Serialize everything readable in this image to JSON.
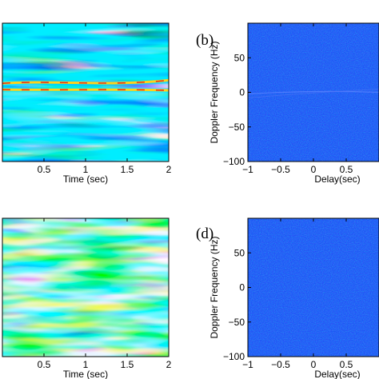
{
  "chart_data": [
    {
      "type": "heatmap",
      "panel_label": "",
      "xlabel": "Time (sec)",
      "ylabel": "",
      "xlim": [
        0,
        2
      ],
      "x_ticks": [
        0.5,
        1,
        1.5,
        2
      ],
      "x_tick_labels": [
        "0.5",
        "1",
        "1.5",
        "2"
      ],
      "y_ticks": [],
      "colormap": "jet",
      "features": [
        {
          "kind": "line",
          "label": "",
          "y_frac": 0.565,
          "x_start": 0,
          "x_end": 2
        },
        {
          "kind": "line",
          "label": "",
          "y_frac": 0.52,
          "x_start": 0,
          "x_end": 2
        }
      ]
    },
    {
      "type": "heatmap",
      "panel_label": "(b)",
      "xlabel": "Delay(sec)",
      "ylabel": "Doppler Frequency (Hz)",
      "xlim": [
        -1,
        1
      ],
      "ylim": [
        -100,
        100
      ],
      "x_ticks": [
        -1,
        -0.5,
        0,
        0.5
      ],
      "x_tick_labels": [
        "−1",
        "−0.5",
        "0",
        "0.5"
      ],
      "y_ticks": [
        -100,
        -50,
        0,
        50
      ],
      "y_tick_labels": [
        "−100",
        "−50",
        "0",
        "50"
      ],
      "colormap": "jet",
      "features": [
        {
          "kind": "faint-ridge",
          "label": "",
          "y_value": 0,
          "x_start": -1,
          "x_end": 1
        }
      ]
    },
    {
      "type": "heatmap",
      "panel_label": "",
      "xlabel": "Time (sec)",
      "ylabel": "",
      "xlim": [
        0,
        2
      ],
      "x_ticks": [
        0.5,
        1,
        1.5,
        2
      ],
      "x_tick_labels": [
        "0.5",
        "1",
        "1.5",
        "2"
      ],
      "y_ticks": [],
      "colormap": "jet",
      "features": []
    },
    {
      "type": "heatmap",
      "panel_label": "(d)",
      "xlabel": "Delay(sec)",
      "ylabel": "Doppler Frequency (Hz)",
      "xlim": [
        -1,
        1
      ],
      "ylim": [
        -100,
        100
      ],
      "x_ticks": [
        -1,
        -0.5,
        0,
        0.5
      ],
      "x_tick_labels": [
        "−1",
        "−0.5",
        "0",
        "0.5"
      ],
      "y_ticks": [
        -100,
        -50,
        0,
        50
      ],
      "y_tick_labels": [
        "−100",
        "−50",
        "0",
        "50"
      ],
      "colormap": "jet",
      "features": []
    }
  ]
}
